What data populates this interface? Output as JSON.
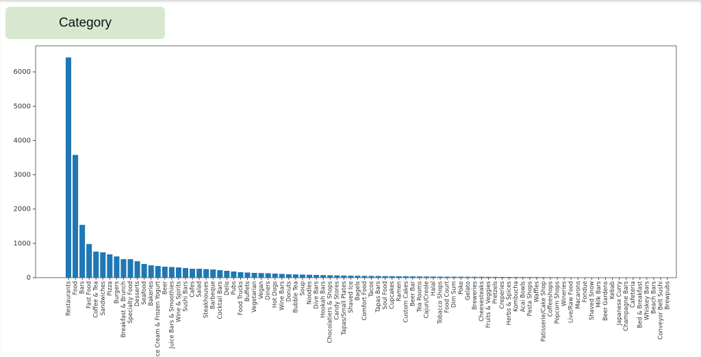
{
  "header": {
    "tab": "Category"
  },
  "chart_data": {
    "type": "bar",
    "color": "#1f77b4",
    "categories": [
      "Restaurants",
      "Food",
      "Bars",
      "Fast Food",
      "Coffee & Tea",
      "Sandwiches",
      "Pizza",
      "Burgers",
      "Breakfast & Brunch",
      "Specialty Food",
      "Desserts",
      "Seafood",
      "Bakeries",
      "Ice Cream & Frozen Yogurt",
      "Beer",
      "Juice Bars & Smoothies",
      "Wine & Spirits",
      "Sushi Bars",
      "Cafes",
      "Salad",
      "Steakhouses",
      "Barbeque",
      "Cocktail Bars",
      "Delis",
      "Pubs",
      "Food Trucks",
      "Buffets",
      "Vegetarian",
      "Vegan",
      "Diners",
      "Hot Dogs",
      "Wine Bars",
      "Donuts",
      "Bubble Tea",
      "Soup",
      "Noodles",
      "Dive Bars",
      "Hookah Bars",
      "Chocolatiers & Shops",
      "Candy Stores",
      "Tapas/Small Plates",
      "Shaved Ice",
      "Bagels",
      "Comfort Food",
      "Tacos",
      "Tapas Bars",
      "Soul Food",
      "Cupcakes",
      "Ramen",
      "Custom Cakes",
      "Beer Bar",
      "Tea Rooms",
      "Cajun/Creole",
      "Halal",
      "Tobacco Shops",
      "Food Court",
      "Dim Sum",
      "Poke",
      "Gelato",
      "Breweries",
      "Cheesesteaks",
      "Fruits & Veggies",
      "Pretzels",
      "Creperies",
      "Herbs & Spices",
      "Kombucha",
      "Acai Bowls",
      "Pasta Shops",
      "Waffles",
      "Patisserie/Cake Shop",
      "Coffeeshops",
      "Popcorn Shops",
      "Wineries",
      "Live/Raw Food",
      "Macarons",
      "Fondue",
      "Shaved Snow",
      "Milk Bars",
      "Beer Gardens",
      "Kebab",
      "Japanese Curry",
      "Champagne Bars",
      "Cafeteria",
      "Bed & Breakfast",
      "Whiskey Bars",
      "Beach Bars",
      "Conveyor Belt Sushi",
      "Brewpubs"
    ],
    "values": [
      6420,
      3580,
      1540,
      980,
      760,
      740,
      680,
      620,
      540,
      540,
      480,
      400,
      360,
      340,
      320,
      310,
      300,
      280,
      260,
      260,
      250,
      240,
      220,
      200,
      180,
      160,
      150,
      140,
      135,
      130,
      120,
      110,
      100,
      95,
      90,
      85,
      80,
      75,
      70,
      66,
      62,
      58,
      55,
      52,
      50,
      48,
      46,
      44,
      42,
      40,
      38,
      36,
      34,
      32,
      30,
      29,
      28,
      27,
      26,
      25,
      24,
      23,
      22,
      21,
      20,
      19,
      18,
      17,
      16,
      15,
      14,
      13,
      12,
      11,
      10,
      9,
      8,
      7,
      6,
      5,
      5,
      4,
      4,
      3,
      3,
      2,
      2,
      1
    ],
    "ylim": [
      0,
      6760
    ],
    "yticks": [
      0,
      1000,
      2000,
      3000,
      4000,
      5000,
      6000
    ]
  }
}
